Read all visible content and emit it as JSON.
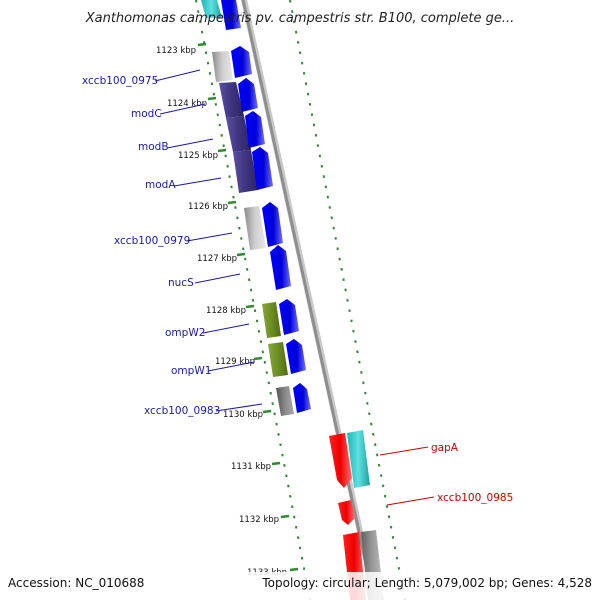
{
  "title": "Xanthomonas campestris pv. campestris str. B100, complete ge...",
  "footer": {
    "accession": "Accession: NC_010688",
    "topology": "Topology: circular; Length: 5,079,002 bp; Genes: 4,528"
  },
  "ticks": [
    {
      "label": "1123 kbp",
      "kbp": 1123
    },
    {
      "label": "1124 kbp",
      "kbp": 1124
    },
    {
      "label": "1125 kbp",
      "kbp": 1125
    },
    {
      "label": "1126 kbp",
      "kbp": 1126
    },
    {
      "label": "1127 kbp",
      "kbp": 1127
    },
    {
      "label": "1128 kbp",
      "kbp": 1128
    },
    {
      "label": "1129 kbp",
      "kbp": 1129
    },
    {
      "label": "1130 kbp",
      "kbp": 1130
    },
    {
      "label": "1131 kbp",
      "kbp": 1131
    },
    {
      "label": "1132 kbp",
      "kbp": 1132
    },
    {
      "label": "1133 kbp",
      "kbp": 1133
    }
  ],
  "genes": [
    {
      "name": "xccb100_0975",
      "color": "#1a1aa6"
    },
    {
      "name": "modC",
      "color": "#1a1aa6"
    },
    {
      "name": "modB",
      "color": "#1a1aa6"
    },
    {
      "name": "modA",
      "color": "#1a1aa6"
    },
    {
      "name": "xccb100_0979",
      "color": "#1a1aa6"
    },
    {
      "name": "nucS",
      "color": "#1a1aa6"
    },
    {
      "name": "ompW2",
      "color": "#1a1aa6"
    },
    {
      "name": "ompW1",
      "color": "#1a1aa6"
    },
    {
      "name": "xccb100_0983",
      "color": "#1a1aa6"
    },
    {
      "name": "gapA",
      "color": "#cc0000"
    },
    {
      "name": "xccb100_0985",
      "color": "#cc0000"
    }
  ],
  "colors": {
    "forward_strand_gene": "#0000ee",
    "reverse_strand_gene": "#ee0000",
    "cds_purple": "#4b3f8c",
    "cds_gray": "#a0a0a0",
    "cds_olive": "#6b8e23",
    "cds_dark_gray": "#666666",
    "cds_cyan": "#20c8c8",
    "backbone": "#888888",
    "tick_ring": "#2e8b2e"
  }
}
